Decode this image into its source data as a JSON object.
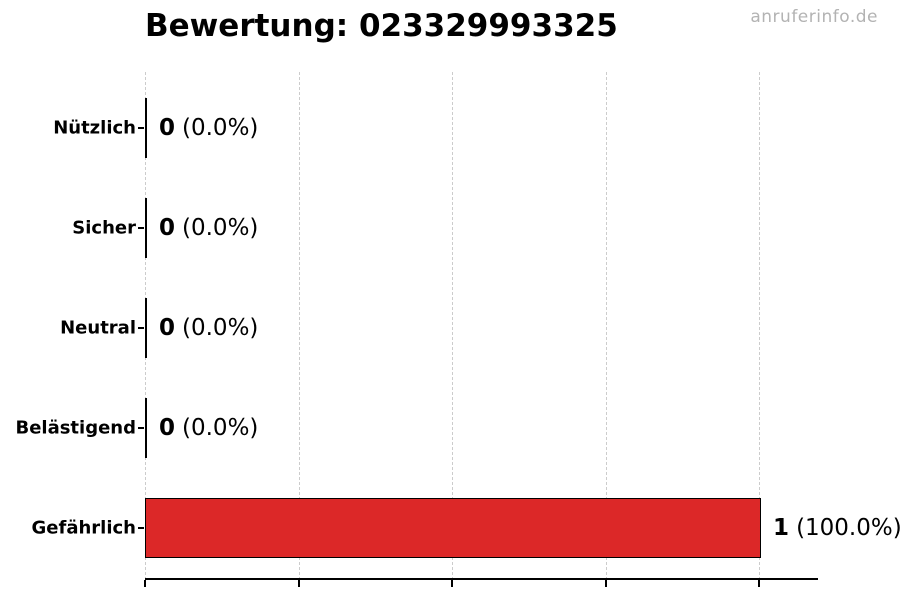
{
  "page": {
    "watermark": "anruferinfo.de",
    "background_color": "#ffffff"
  },
  "chart_data": {
    "type": "bar",
    "orientation": "horizontal",
    "title": "Bewertung: 023329993325",
    "categories": [
      "Nützlich",
      "Sicher",
      "Neutral",
      "Belästigend",
      "Gefährlich"
    ],
    "values": [
      0,
      0,
      0,
      0,
      1
    ],
    "percent_labels": [
      "(0.0%)",
      "(0.0%)",
      "(0.0%)",
      "(0.0%)",
      "(100.0%)"
    ],
    "xlim": [
      0,
      1.096
    ],
    "xticks": [
      0,
      0.25,
      0.5,
      0.75,
      1
    ],
    "xtick_labels_visible": false,
    "grid": true,
    "grid_style": "dashed",
    "grid_color": "#cccccc",
    "legend": false,
    "bar_color": "#dc2828",
    "bar_edge_color": "#000000",
    "title_color": "#000000",
    "watermark_color": "#b3b3b3",
    "rows": [
      {
        "label": "Nützlich",
        "value": 0,
        "count_label": "0",
        "pct_label": "(0.0%)"
      },
      {
        "label": "Sicher",
        "value": 0,
        "count_label": "0",
        "pct_label": "(0.0%)"
      },
      {
        "label": "Neutral",
        "value": 0,
        "count_label": "0",
        "pct_label": "(0.0%)"
      },
      {
        "label": "Belästigend",
        "value": 0,
        "count_label": "0",
        "pct_label": "(0.0%)"
      },
      {
        "label": "Gefährlich",
        "value": 1,
        "count_label": "1",
        "pct_label": "(100.0%)"
      }
    ]
  }
}
